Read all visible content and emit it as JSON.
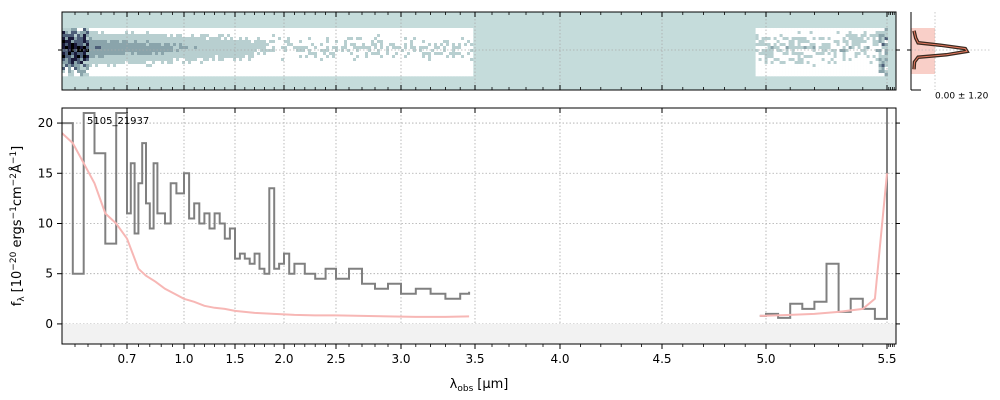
{
  "chart_data": [
    {
      "panel": "spectrum-2d",
      "type": "heatmap",
      "background_color": "#c5dcdb",
      "colormap": [
        "#ffffff",
        "#b8cfd0",
        "#8aa4ab",
        "#4d5e78",
        "#1a1a3a",
        "#000000"
      ],
      "coverage_segments": [
        [
          0.58,
          3.47
        ],
        [
          4.95,
          5.5
        ]
      ],
      "grid": true
    },
    {
      "panel": "profile",
      "type": "line",
      "annotation": "0.00 ± 1.20",
      "fill_color": "#f9cfc8",
      "line_color": "#3a2a20",
      "highlight_color": "#e87a60",
      "profile_x": [
        0.05,
        0.08,
        0.12,
        0.5,
        0.92,
        0.95,
        0.6,
        0.12,
        0.06,
        0.05
      ],
      "profile_y": [
        -4,
        -2.5,
        -1.5,
        -1,
        -0.3,
        0.3,
        1,
        1.5,
        2.5,
        4
      ]
    },
    {
      "panel": "spectrum-1d",
      "type": "line",
      "label": "5105_21937",
      "xlabel_symbol": "λ",
      "xlabel_sub": "obs",
      "xlabel_unit": "[μm]",
      "ylabel_symbol": "f",
      "ylabel_sub": "λ",
      "ylabel_unit_parts": [
        "[10",
        "−20",
        " ergs",
        "−1",
        "cm",
        "−2",
        "Å",
        "−1",
        "]"
      ],
      "xlim": [
        0.58,
        5.53
      ],
      "ylim": [
        -2,
        21.5
      ],
      "x_ticks": [
        0.7,
        1.0,
        1.5,
        2.0,
        2.5,
        3.0,
        3.5,
        4.0,
        4.5,
        5.0,
        5.5
      ],
      "x_tick_labels": [
        "0.7",
        "1.0",
        "1.5",
        "2.0",
        "2.5",
        "3.0",
        "3.5",
        "4.0",
        "4.5",
        "5.0",
        "5.5"
      ],
      "y_ticks": [
        0,
        5,
        10,
        15,
        20
      ],
      "y_tick_labels": [
        "0",
        "5",
        "10",
        "15",
        "20"
      ],
      "grid": true,
      "series": [
        {
          "role": "flux",
          "color": "#808080",
          "x": [
            0.58,
            0.6,
            0.62,
            0.64,
            0.66,
            0.68,
            0.7,
            0.72,
            0.74,
            0.76,
            0.78,
            0.8,
            0.82,
            0.84,
            0.86,
            0.88,
            0.9,
            0.93,
            0.96,
            1.0,
            1.05,
            1.1,
            1.15,
            1.2,
            1.25,
            1.3,
            1.35,
            1.4,
            1.45,
            1.5,
            1.55,
            1.6,
            1.65,
            1.7,
            1.75,
            1.8,
            1.85,
            1.9,
            1.95,
            2.0,
            2.05,
            2.1,
            2.2,
            2.3,
            2.4,
            2.5,
            2.6,
            2.7,
            2.8,
            2.9,
            3.0,
            3.1,
            3.2,
            3.3,
            3.4,
            3.46,
            4.97,
            5.0,
            5.05,
            5.1,
            5.15,
            5.2,
            5.25,
            5.3,
            5.35,
            5.4,
            5.45,
            5.5
          ],
          "y": [
            20,
            5,
            21,
            17,
            8,
            21,
            11,
            16,
            9,
            14,
            18,
            12,
            9.5,
            16,
            11,
            11,
            10,
            14,
            13,
            15,
            10.5,
            12,
            10,
            11,
            9.5,
            11,
            10,
            8.5,
            9.5,
            6.5,
            7,
            6.5,
            6,
            7,
            5.5,
            5,
            13.5,
            5.5,
            6,
            7,
            5,
            6,
            5,
            4.5,
            5.5,
            4.5,
            5.5,
            4,
            3.5,
            4,
            3,
            3.5,
            3,
            2.5,
            3,
            3.2,
            0.8,
            1,
            0.6,
            2,
            1.5,
            2.2,
            6,
            1.2,
            2.5,
            1.5,
            0.5,
            21
          ]
        },
        {
          "role": "model",
          "color": "#f7b7b5",
          "x": [
            0.58,
            0.6,
            0.62,
            0.64,
            0.66,
            0.68,
            0.7,
            0.73,
            0.76,
            0.8,
            0.85,
            0.9,
            0.95,
            1.0,
            1.1,
            1.2,
            1.3,
            1.4,
            1.5,
            1.7,
            1.9,
            2.1,
            2.3,
            2.5,
            2.7,
            2.9,
            3.1,
            3.3,
            3.46,
            4.97,
            5.1,
            5.2,
            5.3,
            5.4,
            5.45,
            5.5
          ],
          "y": [
            19,
            18,
            16,
            14,
            11,
            10,
            8.5,
            7,
            5.5,
            4.8,
            4.2,
            3.5,
            3,
            2.5,
            2.2,
            1.8,
            1.6,
            1.5,
            1.3,
            1.1,
            1,
            0.9,
            0.85,
            0.85,
            0.8,
            0.75,
            0.7,
            0.7,
            0.75,
            0.8,
            0.9,
            1,
            1.2,
            1.5,
            2.5,
            15
          ]
        }
      ]
    }
  ]
}
